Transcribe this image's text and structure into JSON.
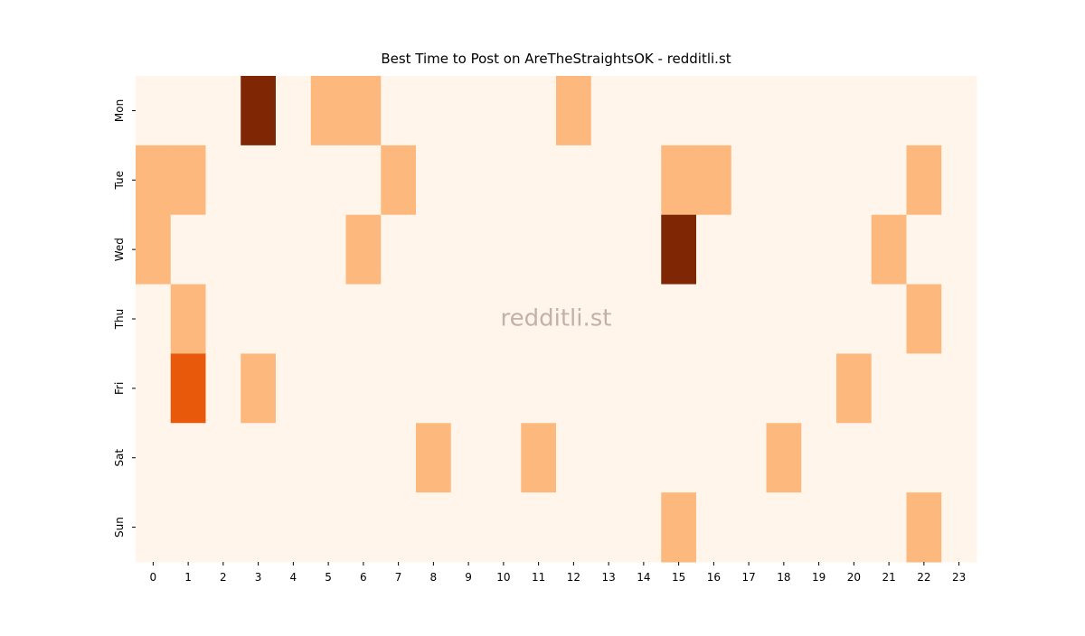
{
  "chart_data": {
    "type": "heatmap",
    "title": "Best Time to Post on AreTheStraightsOK - redditli.st",
    "watermark": "redditli.st",
    "x_categories": [
      0,
      1,
      2,
      3,
      4,
      5,
      6,
      7,
      8,
      9,
      10,
      11,
      12,
      13,
      14,
      15,
      16,
      17,
      18,
      19,
      20,
      21,
      22,
      23
    ],
    "y_categories": [
      "Mon",
      "Tue",
      "Wed",
      "Thu",
      "Fri",
      "Sat",
      "Sun"
    ],
    "values": [
      [
        0,
        0,
        0,
        3,
        0,
        1,
        1,
        0,
        0,
        0,
        0,
        0,
        1,
        0,
        0,
        0,
        0,
        0,
        0,
        0,
        0,
        0,
        0,
        0
      ],
      [
        1,
        1,
        0,
        0,
        0,
        0,
        0,
        1,
        0,
        0,
        0,
        0,
        0,
        0,
        0,
        1,
        1,
        0,
        0,
        0,
        0,
        0,
        1,
        0
      ],
      [
        1,
        0,
        0,
        0,
        0,
        0,
        1,
        0,
        0,
        0,
        0,
        0,
        0,
        0,
        0,
        3,
        0,
        0,
        0,
        0,
        0,
        1,
        0,
        0
      ],
      [
        0,
        1,
        0,
        0,
        0,
        0,
        0,
        0,
        0,
        0,
        0,
        0,
        0,
        0,
        0,
        0,
        0,
        0,
        0,
        0,
        0,
        0,
        1,
        0
      ],
      [
        0,
        2,
        0,
        1,
        0,
        0,
        0,
        0,
        0,
        0,
        0,
        0,
        0,
        0,
        0,
        0,
        0,
        0,
        0,
        0,
        1,
        0,
        0,
        0
      ],
      [
        0,
        0,
        0,
        0,
        0,
        0,
        0,
        0,
        1,
        0,
        0,
        1,
        0,
        0,
        0,
        0,
        0,
        0,
        1,
        0,
        0,
        0,
        0,
        0
      ],
      [
        0,
        0,
        0,
        0,
        0,
        0,
        0,
        0,
        0,
        0,
        0,
        0,
        0,
        0,
        0,
        1,
        0,
        0,
        0,
        0,
        0,
        0,
        1,
        0
      ]
    ],
    "vmin": 0,
    "vmax": 3,
    "colormap": [
      "#fff5eb",
      "#fdb97d",
      "#e8590c",
      "#7f2704"
    ]
  }
}
